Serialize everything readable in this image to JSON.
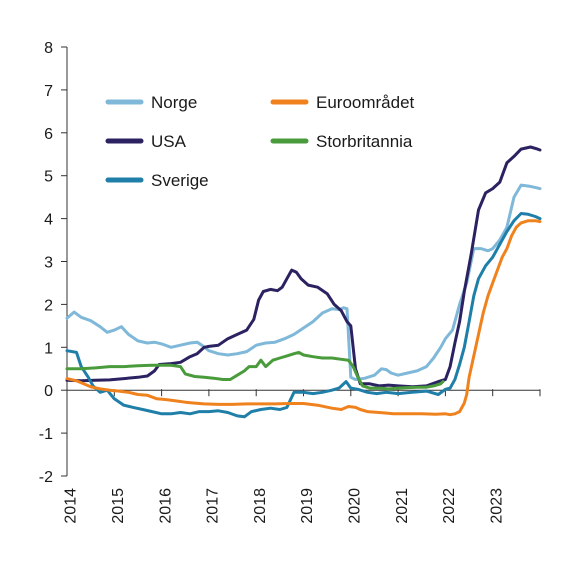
{
  "chart_data": {
    "type": "line",
    "title": "",
    "xlabel": "",
    "ylabel": "",
    "xlim": [
      2014.0,
      2024.0
    ],
    "ylim": [
      -2,
      8
    ],
    "yticks": [
      "-2",
      "-1",
      "0",
      "1",
      "2",
      "3",
      "4",
      "5",
      "6",
      "7",
      "8"
    ],
    "xticks": [
      "2014",
      "2015",
      "2016",
      "2017",
      "2018",
      "2019",
      "2020",
      "2021",
      "2022",
      "2023"
    ],
    "grid": false,
    "legend_position": "top-left",
    "series": [
      {
        "name": "Norge",
        "color": "#7fb8d8",
        "points": [
          [
            2014.0,
            1.68
          ],
          [
            2014.15,
            1.82
          ],
          [
            2014.3,
            1.7
          ],
          [
            2014.5,
            1.62
          ],
          [
            2014.7,
            1.48
          ],
          [
            2014.85,
            1.35
          ],
          [
            2015.0,
            1.4
          ],
          [
            2015.15,
            1.48
          ],
          [
            2015.3,
            1.3
          ],
          [
            2015.5,
            1.15
          ],
          [
            2015.7,
            1.1
          ],
          [
            2015.85,
            1.12
          ],
          [
            2016.0,
            1.08
          ],
          [
            2016.2,
            1.0
          ],
          [
            2016.4,
            1.05
          ],
          [
            2016.6,
            1.1
          ],
          [
            2016.75,
            1.12
          ],
          [
            2016.85,
            1.05
          ],
          [
            2017.0,
            0.92
          ],
          [
            2017.2,
            0.85
          ],
          [
            2017.4,
            0.82
          ],
          [
            2017.6,
            0.85
          ],
          [
            2017.8,
            0.9
          ],
          [
            2018.0,
            1.05
          ],
          [
            2018.2,
            1.1
          ],
          [
            2018.4,
            1.12
          ],
          [
            2018.6,
            1.2
          ],
          [
            2018.8,
            1.3
          ],
          [
            2019.0,
            1.45
          ],
          [
            2019.2,
            1.6
          ],
          [
            2019.4,
            1.8
          ],
          [
            2019.6,
            1.9
          ],
          [
            2019.75,
            1.88
          ],
          [
            2019.85,
            1.92
          ],
          [
            2019.92,
            1.9
          ],
          [
            2020.0,
            0.3
          ],
          [
            2020.1,
            0.25
          ],
          [
            2020.3,
            0.28
          ],
          [
            2020.5,
            0.35
          ],
          [
            2020.65,
            0.5
          ],
          [
            2020.75,
            0.48
          ],
          [
            2020.85,
            0.4
          ],
          [
            2021.0,
            0.35
          ],
          [
            2021.2,
            0.4
          ],
          [
            2021.4,
            0.45
          ],
          [
            2021.6,
            0.55
          ],
          [
            2021.75,
            0.75
          ],
          [
            2021.9,
            1.0
          ],
          [
            2022.0,
            1.2
          ],
          [
            2022.15,
            1.4
          ],
          [
            2022.3,
            2.0
          ],
          [
            2022.45,
            2.5
          ],
          [
            2022.6,
            3.3
          ],
          [
            2022.75,
            3.3
          ],
          [
            2022.9,
            3.25
          ],
          [
            2023.0,
            3.3
          ],
          [
            2023.15,
            3.5
          ],
          [
            2023.3,
            3.8
          ],
          [
            2023.45,
            4.5
          ],
          [
            2023.6,
            4.78
          ],
          [
            2023.8,
            4.75
          ],
          [
            2024.0,
            4.7
          ]
        ]
      },
      {
        "name": "USA",
        "color": "#2b2261",
        "points": [
          [
            2014.0,
            0.23
          ],
          [
            2014.3,
            0.22
          ],
          [
            2014.6,
            0.23
          ],
          [
            2014.9,
            0.24
          ],
          [
            2015.2,
            0.27
          ],
          [
            2015.5,
            0.3
          ],
          [
            2015.7,
            0.33
          ],
          [
            2015.85,
            0.45
          ],
          [
            2015.95,
            0.6
          ],
          [
            2016.2,
            0.62
          ],
          [
            2016.4,
            0.65
          ],
          [
            2016.6,
            0.78
          ],
          [
            2016.75,
            0.85
          ],
          [
            2016.9,
            1.0
          ],
          [
            2017.0,
            1.02
          ],
          [
            2017.2,
            1.05
          ],
          [
            2017.4,
            1.2
          ],
          [
            2017.6,
            1.3
          ],
          [
            2017.8,
            1.4
          ],
          [
            2017.95,
            1.65
          ],
          [
            2018.05,
            2.1
          ],
          [
            2018.15,
            2.3
          ],
          [
            2018.3,
            2.35
          ],
          [
            2018.45,
            2.32
          ],
          [
            2018.55,
            2.4
          ],
          [
            2018.65,
            2.6
          ],
          [
            2018.75,
            2.8
          ],
          [
            2018.85,
            2.75
          ],
          [
            2018.95,
            2.6
          ],
          [
            2019.1,
            2.45
          ],
          [
            2019.3,
            2.4
          ],
          [
            2019.5,
            2.25
          ],
          [
            2019.65,
            2.0
          ],
          [
            2019.8,
            1.85
          ],
          [
            2019.92,
            1.6
          ],
          [
            2020.0,
            1.5
          ],
          [
            2020.1,
            0.5
          ],
          [
            2020.2,
            0.15
          ],
          [
            2020.4,
            0.15
          ],
          [
            2020.6,
            0.1
          ],
          [
            2020.8,
            0.12
          ],
          [
            2021.0,
            0.1
          ],
          [
            2021.3,
            0.08
          ],
          [
            2021.6,
            0.1
          ],
          [
            2021.85,
            0.2
          ],
          [
            2022.0,
            0.25
          ],
          [
            2022.1,
            0.55
          ],
          [
            2022.2,
            1.1
          ],
          [
            2022.3,
            1.6
          ],
          [
            2022.4,
            2.3
          ],
          [
            2022.55,
            3.2
          ],
          [
            2022.7,
            4.2
          ],
          [
            2022.85,
            4.6
          ],
          [
            2023.0,
            4.7
          ],
          [
            2023.15,
            4.85
          ],
          [
            2023.3,
            5.3
          ],
          [
            2023.45,
            5.45
          ],
          [
            2023.6,
            5.62
          ],
          [
            2023.8,
            5.67
          ],
          [
            2023.95,
            5.62
          ],
          [
            2024.0,
            5.6
          ]
        ]
      },
      {
        "name": "Sverige",
        "color": "#1f7fa8",
        "points": [
          [
            2014.0,
            0.92
          ],
          [
            2014.2,
            0.88
          ],
          [
            2014.3,
            0.55
          ],
          [
            2014.45,
            0.3
          ],
          [
            2014.55,
            0.1
          ],
          [
            2014.7,
            -0.05
          ],
          [
            2014.85,
            0.0
          ],
          [
            2015.0,
            -0.2
          ],
          [
            2015.2,
            -0.35
          ],
          [
            2015.4,
            -0.4
          ],
          [
            2015.6,
            -0.45
          ],
          [
            2015.8,
            -0.5
          ],
          [
            2016.0,
            -0.55
          ],
          [
            2016.2,
            -0.55
          ],
          [
            2016.4,
            -0.52
          ],
          [
            2016.6,
            -0.55
          ],
          [
            2016.8,
            -0.5
          ],
          [
            2017.0,
            -0.5
          ],
          [
            2017.2,
            -0.48
          ],
          [
            2017.4,
            -0.52
          ],
          [
            2017.6,
            -0.6
          ],
          [
            2017.75,
            -0.62
          ],
          [
            2017.9,
            -0.5
          ],
          [
            2018.1,
            -0.45
          ],
          [
            2018.3,
            -0.42
          ],
          [
            2018.5,
            -0.45
          ],
          [
            2018.65,
            -0.4
          ],
          [
            2018.8,
            -0.05
          ],
          [
            2019.0,
            -0.05
          ],
          [
            2019.2,
            -0.08
          ],
          [
            2019.4,
            -0.05
          ],
          [
            2019.6,
            0.0
          ],
          [
            2019.75,
            0.05
          ],
          [
            2019.9,
            0.2
          ],
          [
            2020.0,
            0.05
          ],
          [
            2020.15,
            0.02
          ],
          [
            2020.35,
            -0.05
          ],
          [
            2020.55,
            -0.08
          ],
          [
            2020.75,
            -0.05
          ],
          [
            2021.0,
            -0.08
          ],
          [
            2021.3,
            -0.05
          ],
          [
            2021.6,
            -0.02
          ],
          [
            2021.85,
            -0.1
          ],
          [
            2022.0,
            0.02
          ],
          [
            2022.1,
            0.05
          ],
          [
            2022.2,
            0.25
          ],
          [
            2022.3,
            0.6
          ],
          [
            2022.4,
            1.0
          ],
          [
            2022.5,
            1.6
          ],
          [
            2022.6,
            2.2
          ],
          [
            2022.7,
            2.6
          ],
          [
            2022.85,
            2.9
          ],
          [
            2023.0,
            3.1
          ],
          [
            2023.15,
            3.4
          ],
          [
            2023.3,
            3.7
          ],
          [
            2023.45,
            3.95
          ],
          [
            2023.6,
            4.12
          ],
          [
            2023.75,
            4.1
          ],
          [
            2023.9,
            4.05
          ],
          [
            2024.0,
            4.0
          ]
        ]
      },
      {
        "name": "Euroområdet",
        "color": "#f0821e",
        "points": [
          [
            2014.0,
            0.27
          ],
          [
            2014.2,
            0.22
          ],
          [
            2014.35,
            0.15
          ],
          [
            2014.5,
            0.08
          ],
          [
            2014.7,
            0.03
          ],
          [
            2014.9,
            0.0
          ],
          [
            2015.1,
            -0.02
          ],
          [
            2015.3,
            -0.05
          ],
          [
            2015.5,
            -0.1
          ],
          [
            2015.7,
            -0.12
          ],
          [
            2015.9,
            -0.2
          ],
          [
            2016.1,
            -0.22
          ],
          [
            2016.3,
            -0.25
          ],
          [
            2016.5,
            -0.28
          ],
          [
            2016.7,
            -0.3
          ],
          [
            2016.9,
            -0.32
          ],
          [
            2017.2,
            -0.33
          ],
          [
            2017.5,
            -0.33
          ],
          [
            2017.8,
            -0.32
          ],
          [
            2018.1,
            -0.32
          ],
          [
            2018.4,
            -0.32
          ],
          [
            2018.7,
            -0.31
          ],
          [
            2019.0,
            -0.31
          ],
          [
            2019.3,
            -0.35
          ],
          [
            2019.6,
            -0.42
          ],
          [
            2019.8,
            -0.45
          ],
          [
            2019.95,
            -0.38
          ],
          [
            2020.1,
            -0.4
          ],
          [
            2020.2,
            -0.45
          ],
          [
            2020.35,
            -0.5
          ],
          [
            2020.6,
            -0.52
          ],
          [
            2020.9,
            -0.55
          ],
          [
            2021.2,
            -0.55
          ],
          [
            2021.5,
            -0.55
          ],
          [
            2021.8,
            -0.56
          ],
          [
            2022.0,
            -0.55
          ],
          [
            2022.1,
            -0.57
          ],
          [
            2022.2,
            -0.55
          ],
          [
            2022.3,
            -0.5
          ],
          [
            2022.4,
            -0.3
          ],
          [
            2022.45,
            -0.1
          ],
          [
            2022.5,
            0.3
          ],
          [
            2022.6,
            0.8
          ],
          [
            2022.7,
            1.3
          ],
          [
            2022.8,
            1.8
          ],
          [
            2022.9,
            2.2
          ],
          [
            2023.0,
            2.5
          ],
          [
            2023.1,
            2.8
          ],
          [
            2023.2,
            3.1
          ],
          [
            2023.3,
            3.3
          ],
          [
            2023.4,
            3.6
          ],
          [
            2023.5,
            3.8
          ],
          [
            2023.6,
            3.9
          ],
          [
            2023.75,
            3.95
          ],
          [
            2023.9,
            3.95
          ],
          [
            2024.0,
            3.93
          ]
        ]
      },
      {
        "name": "Storbritannia",
        "color": "#4a9b3c",
        "points": [
          [
            2014.0,
            0.5
          ],
          [
            2014.3,
            0.5
          ],
          [
            2014.6,
            0.52
          ],
          [
            2014.9,
            0.55
          ],
          [
            2015.2,
            0.55
          ],
          [
            2015.5,
            0.57
          ],
          [
            2015.8,
            0.58
          ],
          [
            2016.0,
            0.58
          ],
          [
            2016.2,
            0.58
          ],
          [
            2016.4,
            0.55
          ],
          [
            2016.5,
            0.38
          ],
          [
            2016.7,
            0.32
          ],
          [
            2016.9,
            0.3
          ],
          [
            2017.1,
            0.28
          ],
          [
            2017.3,
            0.25
          ],
          [
            2017.45,
            0.25
          ],
          [
            2017.6,
            0.35
          ],
          [
            2017.75,
            0.45
          ],
          [
            2017.85,
            0.55
          ],
          [
            2018.0,
            0.55
          ],
          [
            2018.1,
            0.7
          ],
          [
            2018.2,
            0.55
          ],
          [
            2018.35,
            0.7
          ],
          [
            2018.5,
            0.75
          ],
          [
            2018.65,
            0.8
          ],
          [
            2018.8,
            0.85
          ],
          [
            2018.9,
            0.88
          ],
          [
            2019.0,
            0.82
          ],
          [
            2019.2,
            0.78
          ],
          [
            2019.4,
            0.75
          ],
          [
            2019.6,
            0.75
          ],
          [
            2019.8,
            0.72
          ],
          [
            2019.95,
            0.7
          ],
          [
            2020.05,
            0.55
          ],
          [
            2020.15,
            0.3
          ],
          [
            2020.25,
            0.1
          ],
          [
            2020.4,
            0.05
          ],
          [
            2020.6,
            0.05
          ],
          [
            2020.8,
            0.03
          ],
          [
            2021.0,
            0.05
          ],
          [
            2021.2,
            0.06
          ],
          [
            2021.4,
            0.07
          ],
          [
            2021.6,
            0.07
          ],
          [
            2021.75,
            0.1
          ],
          [
            2021.9,
            0.15
          ],
          [
            2021.95,
            0.2
          ]
        ]
      }
    ]
  }
}
